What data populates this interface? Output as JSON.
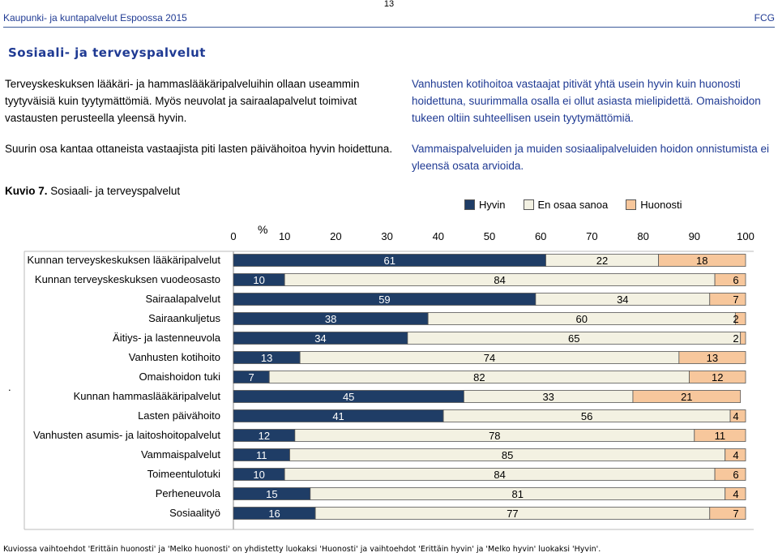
{
  "header": {
    "left": "Kaupunki- ja kuntapalvelut Espoossa 2015",
    "right": "FCG",
    "page_number": "13"
  },
  "section_title": "Sosiaali- ja terveyspalvelut",
  "paragraphs": {
    "left_1": "Terveyskeskuksen lääkäri- ja hammaslääkäripalveluihin ollaan useammin tyytyväisiä kuin tyytymättömiä. Myös neuvolat ja sairaalapalvelut toimivat vastausten perusteella yleensä hyvin.",
    "left_2": "Suurin osa kantaa ottaneista vastaajista piti lasten päivähoitoa hyvin hoidettuna.",
    "right_1": "Vanhusten kotihoitoa vastaajat pitivät yhtä usein hyvin kuin huonosti hoidettuna, suurimmalla osalla ei ollut asiasta mielipidettä. Omaishoidon tukeen oltiin suhteellisen usein tyytymättömiä.",
    "right_2": "Vammaispalveluiden ja muiden sosiaalipalveluiden hoidon onnistumista ei yleensä osata arvioida."
  },
  "figure": {
    "label": "Kuvio 7.",
    "title": "Sosiaali- ja terveyspalvelut",
    "dot": "."
  },
  "footnote": "Kuviossa vaihtoehdot 'Erittäin huonosti' ja 'Melko huonosti' on yhdistetty luokaksi 'Huonosti' ja vaihtoehdot 'Erittäin hyvin' ja 'Melko hyvin' luokaksi 'Hyvin'.",
  "chart_data": {
    "type": "bar",
    "orientation": "horizontal-stacked",
    "axis_unit": "%",
    "xlim": [
      0,
      100
    ],
    "ticks": [
      0,
      10,
      20,
      30,
      40,
      50,
      60,
      70,
      80,
      90,
      100
    ],
    "legend_position": "top-right",
    "series": [
      {
        "name": "Hyvin",
        "color": "#1f3d66"
      },
      {
        "name": "En osaa sanoa",
        "color": "#f3f1e2"
      },
      {
        "name": "Huonosti",
        "color": "#f7c79c"
      }
    ],
    "categories": [
      "Kunnan terveyskeskuksen lääkäripalvelut",
      "Kunnan terveyskeskuksen vuodeosasto",
      "Sairaalapalvelut",
      "Sairaankuljetus",
      "Äitiys- ja lastenneuvola",
      "Vanhusten kotihoito",
      "Omaishoidon tuki",
      "Kunnan hammaslääkäripalvelut",
      "Lasten päivähoito",
      "Vanhusten asumis- ja laitoshoitopalvelut",
      "Vammaispalvelut",
      "Toimeentulotuki",
      "Perheneuvola",
      "Sosiaalityö"
    ],
    "values": [
      [
        61,
        22,
        18
      ],
      [
        10,
        84,
        6
      ],
      [
        59,
        34,
        7
      ],
      [
        38,
        60,
        2
      ],
      [
        34,
        65,
        2
      ],
      [
        13,
        74,
        13
      ],
      [
        7,
        82,
        12
      ],
      [
        45,
        33,
        21
      ],
      [
        41,
        56,
        4
      ],
      [
        12,
        78,
        11
      ],
      [
        11,
        85,
        4
      ],
      [
        10,
        84,
        6
      ],
      [
        15,
        81,
        4
      ],
      [
        16,
        77,
        7
      ]
    ]
  }
}
